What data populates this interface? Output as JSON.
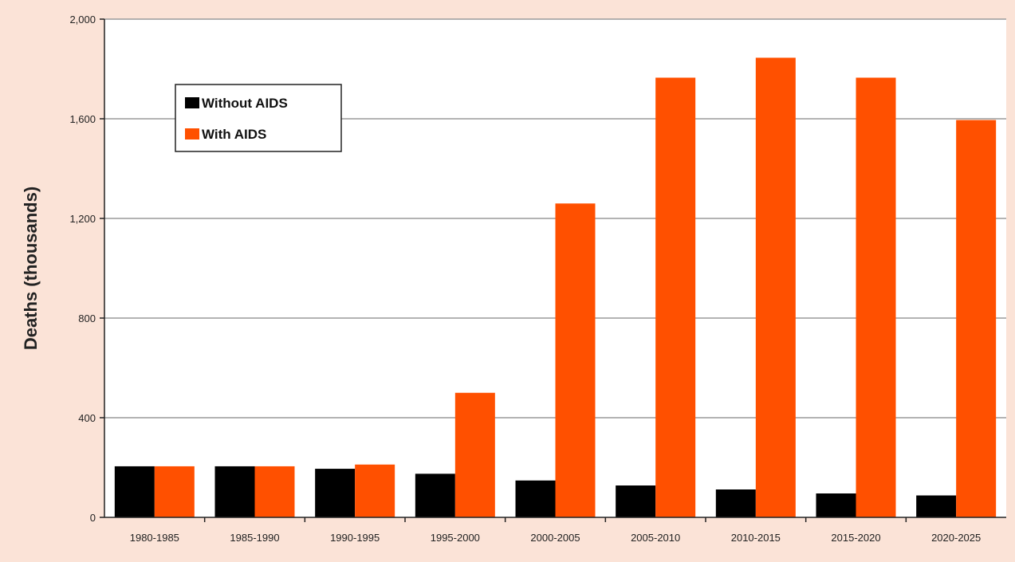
{
  "colors": {
    "page_background": "#fbe3d7",
    "plot_background": "#ffffff",
    "gridline": "#9a9a9a",
    "axis": "#222222",
    "without_aids": "#000000",
    "with_aids": "#ff5000"
  },
  "chart_data": {
    "type": "bar",
    "title": "",
    "xlabel": "",
    "ylabel": "Deaths (thousands)",
    "ylim": [
      0,
      2000
    ],
    "yticks": [
      0,
      400,
      800,
      1200,
      1600,
      2000
    ],
    "ytick_labels": [
      "0",
      "400",
      "800",
      "1,200",
      "1,600",
      "2,000"
    ],
    "grid": true,
    "legend_position": "top-left",
    "categories": [
      "1980-1985",
      "1985-1990",
      "1990-1995",
      "1995-2000",
      "2000-2005",
      "2005-2010",
      "2010-2015",
      "2015-2020",
      "2020-2025"
    ],
    "series": [
      {
        "name": "Without AIDS",
        "color": "#000000",
        "values": [
          205,
          205,
          195,
          175,
          148,
          128,
          112,
          96,
          88
        ]
      },
      {
        "name": "With AIDS",
        "color": "#ff5000",
        "values": [
          205,
          205,
          212,
          500,
          1260,
          1765,
          1845,
          1765,
          1595
        ]
      }
    ]
  }
}
